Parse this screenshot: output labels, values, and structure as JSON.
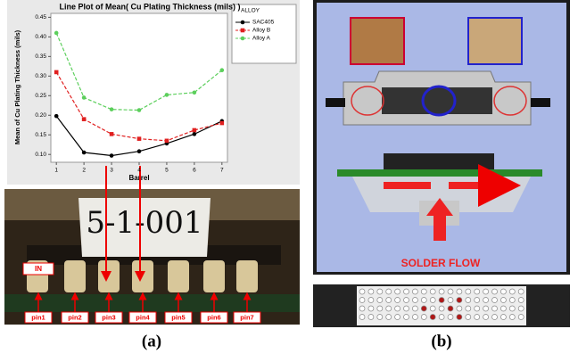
{
  "chart_data": {
    "type": "line",
    "title": "Line Plot of Mean( Cu Plating Thickness (mils) )",
    "x_label": "Barrel",
    "y_label": "Mean of Cu Plating Thickness (mils)",
    "legend_title": "ALLOY",
    "legend": "top-right",
    "x": [
      1,
      2,
      3,
      4,
      5,
      6,
      7
    ],
    "xlim": [
      0.8,
      7.2
    ],
    "xticks": [
      1,
      2,
      3,
      4,
      5,
      6,
      7
    ],
    "ylim": [
      0.08,
      0.46
    ],
    "yticks": [
      {
        "value": 0.1,
        "label": "0.10"
      },
      0.15,
      {
        "value": 0.2,
        "label": "0.20"
      },
      0.25,
      {
        "value": 0.3,
        "label": "0.30"
      },
      0.35,
      {
        "value": 0.4,
        "label": "0.40"
      },
      0.45
    ],
    "series": [
      {
        "name": "SAC405",
        "color": "#000000",
        "dashed": false,
        "marker": "circle",
        "values": [
          0.198,
          0.105,
          0.097,
          0.108,
          0.128,
          0.152,
          0.185
        ]
      },
      {
        "name": "Alloy B",
        "color": "#e02020",
        "dashed": true,
        "marker": "square",
        "values": [
          0.31,
          0.19,
          0.152,
          0.14,
          0.135,
          0.162,
          0.18
        ]
      },
      {
        "name": "Alloy A",
        "color": "#5ccf5c",
        "dashed": true,
        "marker": "circle",
        "values": [
          0.41,
          0.245,
          0.215,
          0.213,
          0.252,
          0.258,
          0.315
        ]
      }
    ]
  },
  "photo": {
    "card_text": "5-1-001",
    "inlet_label": "IN",
    "pins": [
      "pin1",
      "pin2",
      "pin3",
      "pin4",
      "pin5",
      "pin6",
      "pin7"
    ]
  },
  "diagram": {
    "flow_label": "SOLDER FLOW"
  },
  "captions": [
    "(a)",
    "(b)"
  ]
}
